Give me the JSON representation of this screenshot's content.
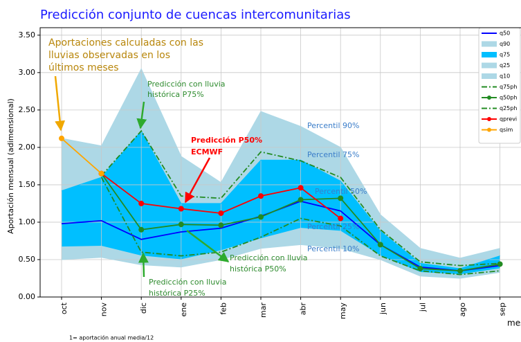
{
  "chart_data": {
    "type": "line",
    "title": "Predicción conjunto de cuencas intercomunitarias",
    "ylabel": "Aportación mensual (adimensional)",
    "xlabel": "mes",
    "footnote": "1= aportación anual media/12",
    "categories": [
      "oct",
      "nov",
      "dic",
      "ene",
      "feb",
      "mar",
      "abr",
      "may",
      "jun",
      "jul",
      "ago",
      "sep"
    ],
    "ylim": [
      0,
      3.6
    ],
    "yticks": [
      {
        "value": 0,
        "label": "0.00"
      },
      {
        "value": 0.5,
        "label": "0.50"
      },
      {
        "value": 1,
        "label": "1.00"
      },
      {
        "value": 1.5,
        "label": "1.50"
      },
      {
        "value": 2,
        "label": "2.00"
      },
      {
        "value": 2.5,
        "label": "2.50"
      },
      {
        "value": 3,
        "label": "3.00"
      },
      {
        "value": 3.5,
        "label": "3.50"
      }
    ],
    "grid": true,
    "legend": "upper right",
    "series": [
      {
        "name": "q50",
        "color": "#0000ff",
        "style": "line",
        "values": [
          0.98,
          1.02,
          0.77,
          0.87,
          0.92,
          1.08,
          1.28,
          1.15,
          0.7,
          0.4,
          0.35,
          0.42
        ]
      },
      {
        "name": "q90",
        "color": "#add8e6",
        "style": "band",
        "values": [
          2.12,
          2.02,
          3.05,
          1.88,
          1.53,
          2.48,
          2.28,
          2.0,
          1.1,
          0.65,
          0.52,
          0.65
        ]
      },
      {
        "name": "q75",
        "color": "#00bfff",
        "style": "band",
        "values": [
          1.42,
          1.6,
          2.22,
          1.25,
          1.25,
          1.83,
          1.83,
          1.55,
          0.88,
          0.45,
          0.38,
          0.55
        ]
      },
      {
        "name": "q25",
        "color": "#add8e6",
        "style": "band",
        "values": [
          0.67,
          0.68,
          0.55,
          0.5,
          0.62,
          0.78,
          0.92,
          0.88,
          0.55,
          0.33,
          0.3,
          0.38
        ]
      },
      {
        "name": "q10",
        "color": "#add8e6",
        "style": "band",
        "values": [
          0.5,
          0.53,
          0.43,
          0.4,
          0.5,
          0.65,
          0.7,
          0.65,
          0.5,
          0.28,
          0.25,
          0.33
        ]
      },
      {
        "name": "q75ph",
        "color": "#228b22",
        "style": "dashdot",
        "values": [
          null,
          1.62,
          2.22,
          1.35,
          1.32,
          1.94,
          1.82,
          1.6,
          0.9,
          0.47,
          0.42,
          0.45
        ]
      },
      {
        "name": "q50ph",
        "color": "#228b22",
        "style": "marker-line",
        "values": [
          null,
          1.65,
          0.9,
          0.97,
          0.96,
          1.07,
          1.3,
          1.32,
          0.7,
          0.38,
          0.35,
          0.44
        ]
      },
      {
        "name": "q25ph",
        "color": "#228b22",
        "style": "dashdot",
        "values": [
          null,
          1.6,
          0.6,
          0.55,
          0.6,
          0.8,
          1.05,
          0.95,
          0.55,
          0.35,
          0.3,
          0.35
        ]
      },
      {
        "name": "qprevi",
        "color": "#ff0000",
        "style": "marker-line",
        "values": [
          null,
          1.65,
          1.25,
          1.18,
          1.12,
          1.35,
          1.46,
          1.05,
          null,
          null,
          null,
          null
        ]
      },
      {
        "name": "qsim",
        "color": "#ffa500",
        "style": "marker-line",
        "values": [
          2.12,
          1.65,
          null,
          null,
          null,
          null,
          null,
          null,
          null,
          null,
          null,
          null
        ]
      }
    ],
    "annotations": [
      {
        "lines": [
          "Aportaciones calculadas con las",
          "lluvias observadas en los",
          "últimos meses"
        ],
        "color": "#b8860b"
      },
      {
        "lines": [
          "Predicción con lluvia",
          "histórica P75%"
        ],
        "color": "#2e8b2e"
      },
      {
        "lines": [
          "Predicción P50%",
          "ECMWF"
        ],
        "color": "#ff0000",
        "bold": true
      },
      {
        "lines": [
          "Percentil 90%"
        ],
        "color": "#3a7dc9"
      },
      {
        "lines": [
          "Percentil 75%"
        ],
        "color": "#3a7dc9"
      },
      {
        "lines": [
          "Percentil 50%"
        ],
        "color": "#3a7dc9"
      },
      {
        "lines": [
          "Percentil 25%"
        ],
        "color": "#3a7dc9"
      },
      {
        "lines": [
          "Percentil 10%"
        ],
        "color": "#3a7dc9"
      },
      {
        "lines": [
          "Predicción con lluvia",
          "histórica P50%"
        ],
        "color": "#2e8b2e"
      },
      {
        "lines": [
          "Predicción con lluvia",
          "histórica P25%"
        ],
        "color": "#2e8b2e"
      }
    ]
  }
}
